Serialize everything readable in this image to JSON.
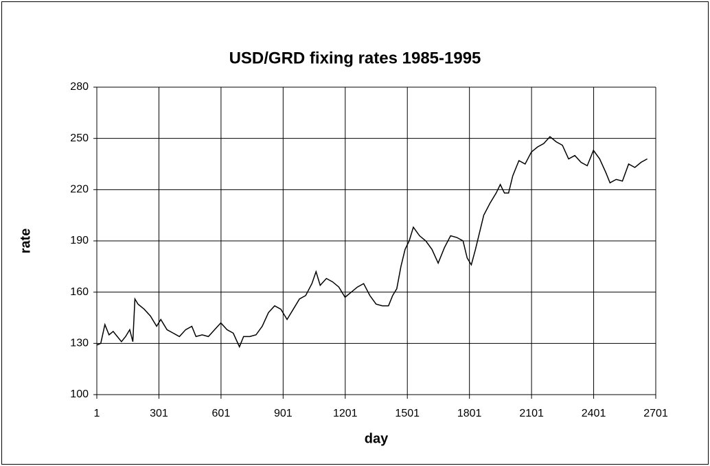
{
  "chart_data": {
    "type": "line",
    "title": "USD/GRD fixing rates 1985-1995",
    "x_label": "day",
    "y_label": "rate",
    "xlim": [
      1,
      2701
    ],
    "xticks": [
      1,
      301,
      601,
      901,
      1201,
      1501,
      1801,
      2101,
      2401,
      2701
    ],
    "ylim": [
      100,
      280
    ],
    "yticks": [
      100,
      130,
      160,
      190,
      220,
      250,
      280
    ],
    "grid": true,
    "x": [
      1,
      20,
      40,
      60,
      80,
      100,
      120,
      140,
      160,
      175,
      185,
      200,
      230,
      260,
      290,
      310,
      340,
      370,
      400,
      430,
      460,
      480,
      510,
      540,
      570,
      600,
      630,
      660,
      690,
      710,
      740,
      770,
      800,
      830,
      860,
      890,
      920,
      950,
      980,
      1010,
      1040,
      1060,
      1080,
      1110,
      1140,
      1170,
      1200,
      1230,
      1260,
      1290,
      1320,
      1350,
      1380,
      1410,
      1430,
      1450,
      1470,
      1490,
      1510,
      1530,
      1560,
      1590,
      1620,
      1650,
      1680,
      1710,
      1740,
      1770,
      1790,
      1810,
      1830,
      1850,
      1870,
      1900,
      1930,
      1950,
      1970,
      1990,
      2010,
      2040,
      2070,
      2100,
      2130,
      2160,
      2190,
      2220,
      2250,
      2280,
      2310,
      2340,
      2370,
      2400,
      2430,
      2460,
      2480,
      2510,
      2540,
      2570,
      2600,
      2630,
      2660
    ],
    "series": [
      {
        "name": "rate",
        "color": "#000000",
        "values": [
          129,
          130,
          141,
          135,
          137,
          134,
          131,
          134,
          138,
          131,
          156,
          153,
          150,
          146,
          140,
          144,
          138,
          136,
          134,
          138,
          140,
          134,
          135,
          134,
          138,
          142,
          138,
          136,
          128,
          134,
          134,
          135,
          140,
          148,
          152,
          150,
          144,
          150,
          156,
          158,
          165,
          172,
          164,
          168,
          166,
          163,
          157,
          160,
          163,
          165,
          158,
          153,
          152,
          152,
          158,
          162,
          175,
          185,
          190,
          198,
          193,
          190,
          185,
          177,
          186,
          193,
          192,
          190,
          180,
          176,
          185,
          195,
          205,
          212,
          218,
          223,
          218,
          218,
          228,
          237,
          235,
          242,
          245,
          247,
          251,
          248,
          246,
          238,
          240,
          236,
          234,
          243,
          238,
          230,
          224,
          226,
          225,
          235,
          233,
          236,
          238
        ]
      }
    ]
  }
}
